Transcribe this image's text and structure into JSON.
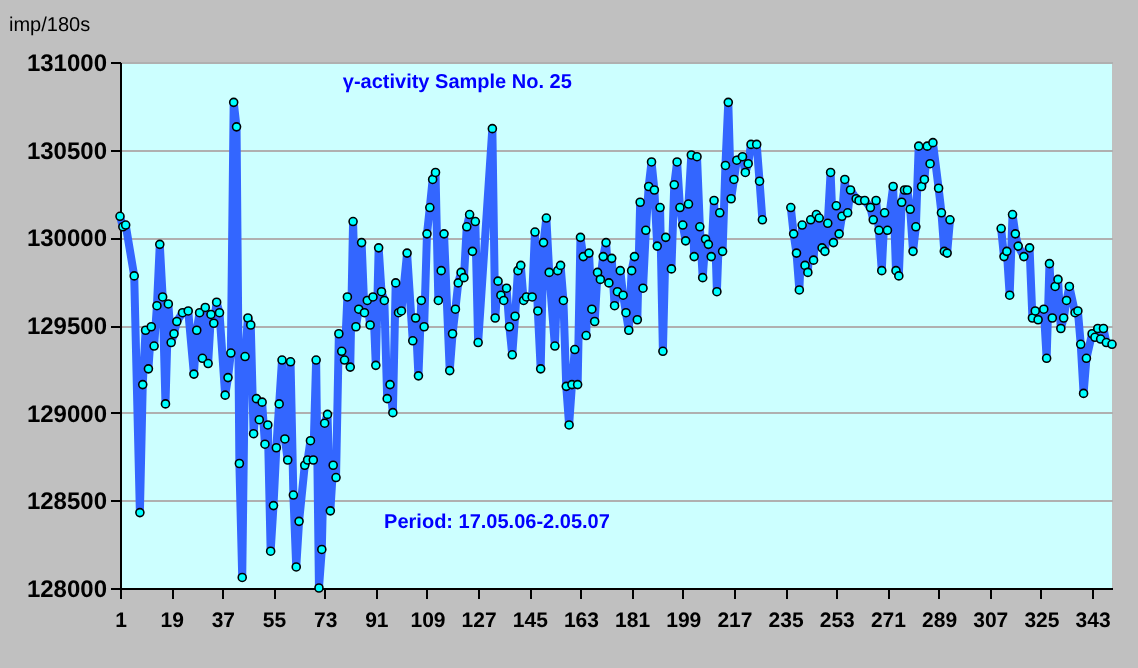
{
  "chart_data": {
    "type": "line",
    "title": "γ-activity Sample No. 25",
    "ylabel": "imp/180s",
    "annotations": [
      "Period: 17.05.06-2.05.07"
    ],
    "x": [
      1,
      2,
      3,
      6,
      8,
      9,
      10,
      11,
      12,
      13,
      14,
      15,
      16,
      17,
      18,
      19,
      20,
      21,
      23,
      25,
      27,
      28,
      29,
      30,
      31,
      32,
      33,
      34,
      35,
      36,
      38,
      39,
      40,
      41,
      42,
      43,
      44,
      45,
      46,
      47,
      48,
      49,
      50,
      51,
      52,
      53,
      54,
      55,
      56,
      57,
      58,
      59,
      60,
      61,
      62,
      63,
      64,
      66,
      67,
      68,
      69,
      70,
      71,
      72,
      73,
      74,
      75,
      76,
      77,
      78,
      79,
      80,
      81,
      82,
      83,
      84,
      85,
      86,
      87,
      88,
      89,
      90,
      91,
      92,
      93,
      94,
      95,
      96,
      97,
      98,
      99,
      100,
      102,
      104,
      105,
      106,
      107,
      108,
      109,
      110,
      111,
      112,
      113,
      114,
      115,
      117,
      118,
      119,
      120,
      121,
      122,
      123,
      124,
      125,
      126,
      127,
      132,
      133,
      134,
      135,
      136,
      137,
      138,
      139,
      140,
      141,
      142,
      143,
      144,
      146,
      147,
      148,
      149,
      150,
      151,
      152,
      154,
      155,
      156,
      157,
      158,
      159,
      160,
      161,
      162,
      163,
      164,
      165,
      166,
      167,
      168,
      169,
      170,
      171,
      172,
      173,
      174,
      175,
      176,
      177,
      178,
      179,
      180,
      181,
      182,
      183,
      184,
      185,
      186,
      187,
      188,
      189,
      190,
      191,
      192,
      193,
      195,
      196,
      197,
      198,
      199,
      200,
      201,
      202,
      203,
      204,
      205,
      206,
      207,
      208,
      209,
      210,
      211,
      212,
      213,
      214,
      215,
      216,
      217,
      218,
      220,
      221,
      222,
      223,
      225,
      226,
      227,
      230,
      237,
      238,
      239,
      240,
      241,
      242,
      243,
      244,
      245,
      246,
      247,
      248,
      249,
      250,
      251,
      252,
      253,
      254,
      255,
      256,
      257,
      258,
      260,
      261,
      263,
      265,
      266,
      267,
      268,
      269,
      270,
      271,
      273,
      274,
      275,
      276,
      277,
      278,
      279,
      280,
      281,
      282,
      283,
      284,
      285,
      286,
      287,
      289,
      290,
      291,
      292,
      293,
      300,
      311,
      312,
      313,
      314,
      315,
      316,
      317,
      319,
      321,
      322,
      323,
      324,
      326,
      327,
      328,
      329,
      330,
      331,
      332,
      333,
      334,
      335,
      337,
      338,
      339,
      340,
      341,
      343,
      344,
      345,
      346,
      347,
      348,
      350
    ],
    "series": [
      {
        "color": "#3366ff",
        "values": [
          130120,
          130060,
          130070,
          129780,
          128430,
          129160,
          129470,
          129250,
          129490,
          129380,
          129610,
          129960,
          129660,
          129050,
          129620,
          129400,
          129450,
          129520,
          129570,
          129580,
          129220,
          129470,
          129570,
          129310,
          129600,
          129280,
          129560,
          129510,
          129630,
          129570,
          129100,
          129200,
          129340,
          130770,
          130630,
          128710,
          128060,
          129320,
          129540,
          129500,
          128880,
          129080,
          128960,
          129060,
          128820,
          128930,
          128210,
          128470,
          128800,
          129050,
          129300,
          128850,
          128730,
          129290,
          128530,
          128120,
          128380,
          128700,
          128730,
          128840,
          128730,
          129300,
          128000,
          128220,
          128940,
          128990,
          128440,
          128700,
          128630,
          129450,
          129350,
          129300,
          129660,
          129260,
          130090,
          129490,
          129590,
          129970,
          129570,
          129640,
          129500,
          129660,
          129270,
          129940,
          129690,
          129640,
          129080,
          129160,
          129000,
          129740,
          129570,
          129580,
          129910,
          129410,
          129540,
          129210,
          129640,
          129490,
          130020,
          130170,
          130330,
          130370,
          129640,
          129810,
          130020,
          129240,
          129450,
          129590,
          129740,
          129800,
          129770,
          130060,
          130130,
          129920,
          130090,
          129400,
          130620,
          129540,
          129750,
          129670,
          129640,
          129710,
          129490,
          129330,
          129550,
          129810,
          129840,
          129640,
          129660,
          129660,
          130030,
          129580,
          129250,
          129970,
          130110,
          129800,
          129380,
          129810,
          129840,
          129640,
          129150,
          128930,
          129160,
          129360,
          129160,
          130000,
          129890,
          129440,
          129910,
          129590,
          129520,
          129800,
          129760,
          129890,
          129970,
          129740,
          129880,
          129610,
          129690,
          129810,
          129670,
          129570,
          129470,
          129810,
          129890,
          129530,
          130200,
          129710,
          130040,
          130290,
          130430,
          130270,
          129950,
          130170,
          129350,
          130000,
          129820,
          130300,
          130430,
          130170,
          130070,
          129980,
          130190,
          130470,
          129890,
          130460,
          130060,
          129770,
          129990,
          129960,
          129890,
          130210,
          129690,
          130140,
          129920,
          130410,
          130770,
          130220,
          130330,
          130440,
          130460,
          130370,
          130420,
          130530,
          130530,
          130320,
          130100,
          null,
          130170,
          130020,
          129910,
          129700,
          130070,
          129840,
          129800,
          130100,
          129870,
          130130,
          130110,
          129940,
          129920,
          130080,
          130370,
          129970,
          130180,
          130020,
          130120,
          130330,
          130140,
          130270,
          130220,
          130210,
          130210,
          130170,
          130100,
          130210,
          130040,
          129810,
          130140,
          130040,
          130290,
          129810,
          129780,
          130200,
          130270,
          130270,
          130160,
          129920,
          130060,
          130520,
          130290,
          130330,
          130520,
          130420,
          130540,
          130280,
          130140,
          129920,
          129910,
          130100,
          null,
          130050,
          129890,
          129920,
          129670,
          130130,
          130020,
          129950,
          129890,
          129940,
          129540,
          129580,
          129530,
          129590,
          129310,
          129850,
          129540,
          129720,
          129760,
          129480,
          129540,
          129640,
          129720,
          129570,
          129580,
          129390,
          129110,
          129310,
          129450,
          129430,
          129480,
          129420,
          129480,
          129400,
          129390
        ]
      }
    ],
    "xlim": [
      1,
      350
    ],
    "xticks": [
      1,
      19,
      37,
      55,
      73,
      91,
      109,
      127,
      145,
      163,
      181,
      199,
      217,
      235,
      253,
      271,
      289,
      307,
      325,
      343
    ],
    "ylim": [
      128000,
      131000
    ],
    "yticks": [
      128000,
      128500,
      129000,
      129500,
      130000,
      130500,
      131000
    ],
    "grid": "y",
    "marker": "circle",
    "line_style": "solid"
  }
}
